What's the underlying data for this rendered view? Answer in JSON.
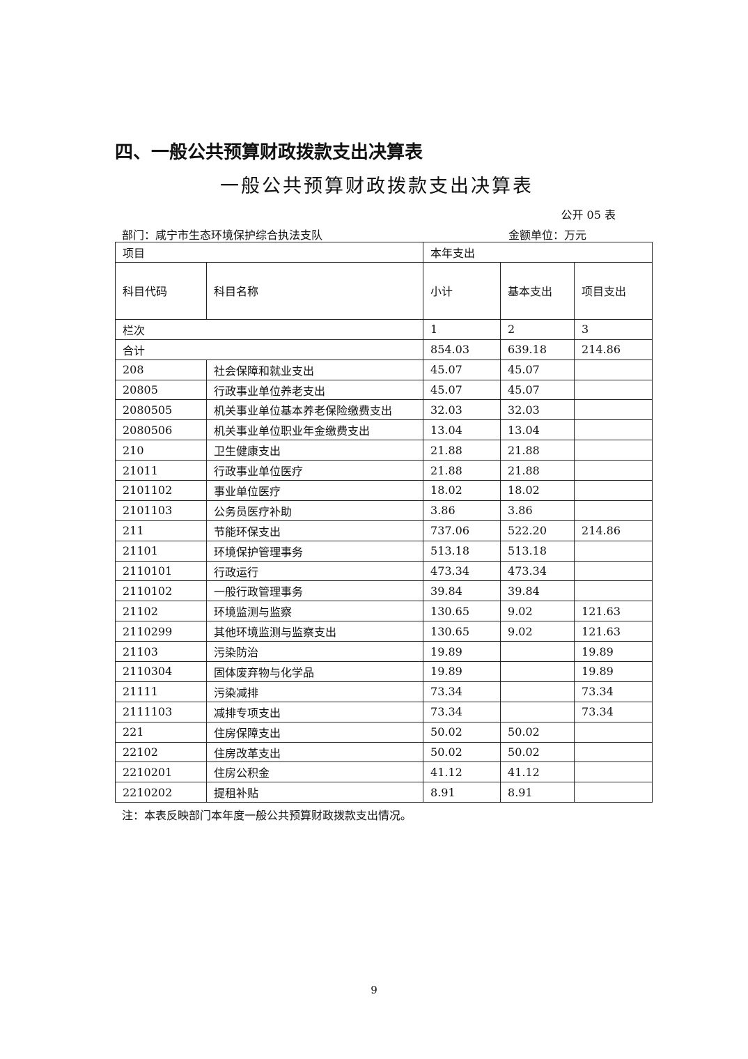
{
  "section_title": "四、一般公共预算财政拨款支出决算表",
  "table_title": "一般公共预算财政拨款支出决算表",
  "table_code": "公开 05 表",
  "department": "部门：咸宁市生态环境保护综合执法支队",
  "unit": "金额单位：万元",
  "headers": {
    "item": "项目",
    "current_year": "本年支出",
    "code": "科目代码",
    "name": "科目名称",
    "subtotal": "小计",
    "basic": "基本支出",
    "project": "项目支出",
    "column_no": "栏次",
    "c1": "1",
    "c2": "2",
    "c3": "3"
  },
  "total": {
    "label": "合计",
    "subtotal": "854.03",
    "basic": "639.18",
    "project": "214.86"
  },
  "rows": [
    {
      "code": "208",
      "name": "社会保障和就业支出",
      "subtotal": "45.07",
      "basic": "45.07",
      "project": ""
    },
    {
      "code": "20805",
      "name": "行政事业单位养老支出",
      "subtotal": "45.07",
      "basic": "45.07",
      "project": ""
    },
    {
      "code": "2080505",
      "name": "机关事业单位基本养老保险缴费支出",
      "subtotal": "32.03",
      "basic": "32.03",
      "project": ""
    },
    {
      "code": "2080506",
      "name": "机关事业单位职业年金缴费支出",
      "subtotal": "13.04",
      "basic": "13.04",
      "project": ""
    },
    {
      "code": "210",
      "name": "卫生健康支出",
      "subtotal": "21.88",
      "basic": "21.88",
      "project": ""
    },
    {
      "code": "21011",
      "name": "行政事业单位医疗",
      "subtotal": "21.88",
      "basic": "21.88",
      "project": ""
    },
    {
      "code": "2101102",
      "name": "事业单位医疗",
      "subtotal": "18.02",
      "basic": "18.02",
      "project": ""
    },
    {
      "code": "2101103",
      "name": "公务员医疗补助",
      "subtotal": "3.86",
      "basic": "3.86",
      "project": ""
    },
    {
      "code": "211",
      "name": "节能环保支出",
      "subtotal": "737.06",
      "basic": "522.20",
      "project": "214.86"
    },
    {
      "code": "21101",
      "name": "环境保护管理事务",
      "subtotal": "513.18",
      "basic": "513.18",
      "project": ""
    },
    {
      "code": "2110101",
      "name": "行政运行",
      "subtotal": "473.34",
      "basic": "473.34",
      "project": ""
    },
    {
      "code": "2110102",
      "name": "一般行政管理事务",
      "subtotal": "39.84",
      "basic": "39.84",
      "project": ""
    },
    {
      "code": "21102",
      "name": "环境监测与监察",
      "subtotal": "130.65",
      "basic": "9.02",
      "project": "121.63"
    },
    {
      "code": "2110299",
      "name": "其他环境监测与监察支出",
      "subtotal": "130.65",
      "basic": "9.02",
      "project": "121.63"
    },
    {
      "code": "21103",
      "name": "污染防治",
      "subtotal": "19.89",
      "basic": "",
      "project": "19.89"
    },
    {
      "code": "2110304",
      "name": "固体废弃物与化学品",
      "subtotal": "19.89",
      "basic": "",
      "project": "19.89"
    },
    {
      "code": "21111",
      "name": "污染减排",
      "subtotal": "73.34",
      "basic": "",
      "project": "73.34"
    },
    {
      "code": "2111103",
      "name": "减排专项支出",
      "subtotal": "73.34",
      "basic": "",
      "project": "73.34"
    },
    {
      "code": "221",
      "name": "住房保障支出",
      "subtotal": "50.02",
      "basic": "50.02",
      "project": ""
    },
    {
      "code": "22102",
      "name": "住房改革支出",
      "subtotal": "50.02",
      "basic": "50.02",
      "project": ""
    },
    {
      "code": "2210201",
      "name": "住房公积金",
      "subtotal": "41.12",
      "basic": "41.12",
      "project": ""
    },
    {
      "code": "2210202",
      "name": "提租补贴",
      "subtotal": "8.91",
      "basic": "8.91",
      "project": ""
    }
  ],
  "note": "注：本表反映部门本年度一般公共预算财政拨款支出情况。",
  "page_number": "9"
}
